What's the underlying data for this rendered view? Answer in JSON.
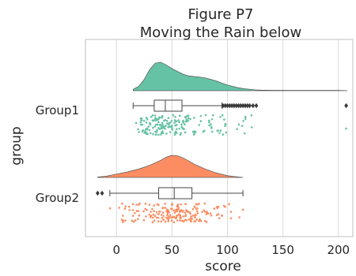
{
  "chart_data": {
    "type": "raincloud",
    "title": "Figure P7",
    "subtitle": "Moving the Rain below",
    "xlabel": "score",
    "ylabel": "group",
    "xlim": [
      -28,
      213
    ],
    "xticks": [
      0,
      50,
      100,
      150,
      200
    ],
    "grid": "vertical",
    "series": [
      {
        "name": "Group1",
        "color": "#66c2a5",
        "box": {
          "min": 15,
          "q1": 34,
          "median": 44,
          "q3": 59,
          "whisker_high": 95
        },
        "outliers": [
          96,
          98,
          100,
          102,
          104,
          106,
          108,
          110,
          112,
          114,
          116,
          118,
          120,
          123,
          126,
          207
        ],
        "density": {
          "x": [
            15,
            20,
            25,
            30,
            35,
            40,
            45,
            50,
            55,
            60,
            65,
            70,
            75,
            80,
            85,
            90,
            95,
            100,
            105,
            110,
            115,
            120,
            125,
            130,
            140,
            160,
            180,
            200,
            208
          ],
          "y": [
            0.05,
            0.15,
            0.4,
            0.75,
            0.97,
            1.0,
            0.9,
            0.78,
            0.68,
            0.58,
            0.52,
            0.5,
            0.48,
            0.45,
            0.4,
            0.34,
            0.27,
            0.2,
            0.15,
            0.1,
            0.07,
            0.05,
            0.03,
            0.02,
            0.015,
            0.01,
            0.01,
            0.01,
            0.0
          ]
        }
      },
      {
        "name": "Group2",
        "color": "#fc8d62",
        "box": {
          "min": -6,
          "q1": 38,
          "median": 52,
          "q3": 68,
          "whisker_high": 114
        },
        "outliers": [
          -17,
          -13
        ],
        "density": {
          "x": [
            -17,
            -10,
            0,
            10,
            20,
            30,
            40,
            45,
            50,
            55,
            60,
            65,
            70,
            80,
            90,
            100,
            110,
            114
          ],
          "y": [
            0.02,
            0.05,
            0.15,
            0.25,
            0.38,
            0.55,
            0.78,
            0.92,
            1.0,
            0.98,
            0.88,
            0.75,
            0.6,
            0.38,
            0.2,
            0.08,
            0.02,
            0.0
          ]
        }
      }
    ]
  }
}
